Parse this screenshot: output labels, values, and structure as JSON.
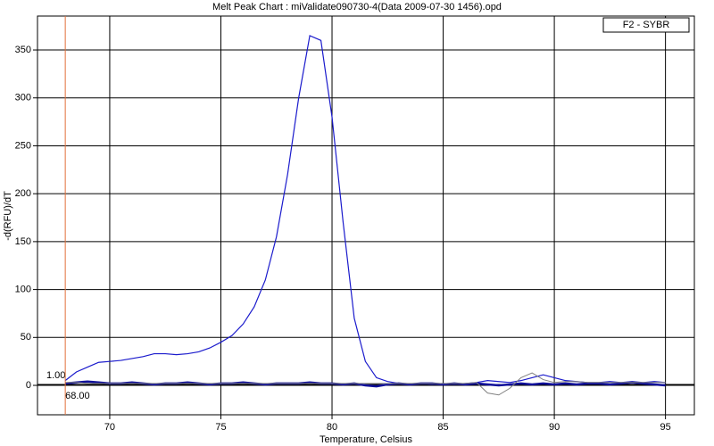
{
  "chart_data": {
    "type": "line",
    "title": "Melt Peak Chart : miValidate090730-4(Data 2009-07-30 1456).opd",
    "x_label": "Temperature, Celsius",
    "y_label": "-d(RFU)/dT",
    "x": [
      68,
      68.5,
      69,
      69.5,
      70,
      70.5,
      71,
      71.5,
      72,
      72.5,
      73,
      73.5,
      74,
      74.5,
      75,
      75.5,
      76,
      76.5,
      77,
      77.5,
      78,
      78.5,
      79,
      79.5,
      80,
      80.5,
      81,
      81.5,
      82,
      82.5,
      83,
      83.5,
      84,
      84.5,
      85,
      85.5,
      86,
      86.5,
      87,
      87.5,
      88,
      88.5,
      89,
      89.5,
      90,
      90.5,
      91,
      91.5,
      92,
      92.5,
      93,
      93.5,
      94,
      94.5,
      95
    ],
    "series": [
      {
        "name": "F2 - SYBR",
        "color": "#1a1acc",
        "width": 1.2,
        "values": [
          5,
          14,
          19,
          24,
          25,
          26,
          28,
          30,
          33,
          33,
          32,
          33,
          35,
          39,
          45,
          52,
          64,
          82,
          110,
          155,
          220,
          300,
          365,
          360,
          280,
          170,
          70,
          25,
          8,
          4,
          2,
          1,
          2,
          1,
          2,
          1,
          2,
          3,
          5,
          4,
          3,
          5,
          8,
          11,
          8,
          5,
          4,
          3,
          3,
          4,
          3,
          4,
          3,
          4,
          3
        ]
      },
      {
        "color": "#10109a",
        "width": 2.5,
        "values": [
          2,
          3,
          4,
          3,
          2,
          2,
          3,
          2,
          1,
          2,
          2,
          3,
          2,
          1,
          2,
          2,
          3,
          2,
          1,
          2,
          2,
          2,
          3,
          2,
          2,
          1,
          2,
          0,
          -1,
          1,
          2,
          1,
          2,
          2,
          1,
          2,
          1,
          2,
          1,
          0,
          1,
          2,
          1,
          2,
          1,
          2,
          1,
          2,
          2,
          1,
          2,
          3,
          2,
          1,
          0
        ]
      },
      {
        "color": "#808080",
        "width": 1,
        "values": [
          3,
          3,
          2,
          2,
          2,
          2,
          2,
          2,
          2,
          2,
          2,
          2,
          2,
          2,
          2,
          2,
          2,
          2,
          2,
          2,
          2,
          2,
          2,
          2,
          2,
          2,
          2,
          2,
          2,
          2,
          2,
          2,
          2,
          2,
          2,
          2,
          2,
          3,
          -8,
          -10,
          -3,
          8,
          13,
          6,
          3,
          4,
          4,
          3,
          3,
          3,
          3,
          3,
          3,
          3,
          3
        ]
      }
    ],
    "xlim": [
      66.75,
      96.3
    ],
    "ylim": [
      -30.7,
      385.4
    ],
    "xticks": [
      70,
      75,
      80,
      85,
      90,
      95
    ],
    "yticks": [
      0,
      50,
      100,
      150,
      200,
      250,
      300,
      350
    ],
    "grid": true,
    "threshold": {
      "value": 1,
      "label": "1.00"
    },
    "cursor": {
      "value": 68,
      "label": "68.00"
    },
    "legend": "top-right"
  }
}
